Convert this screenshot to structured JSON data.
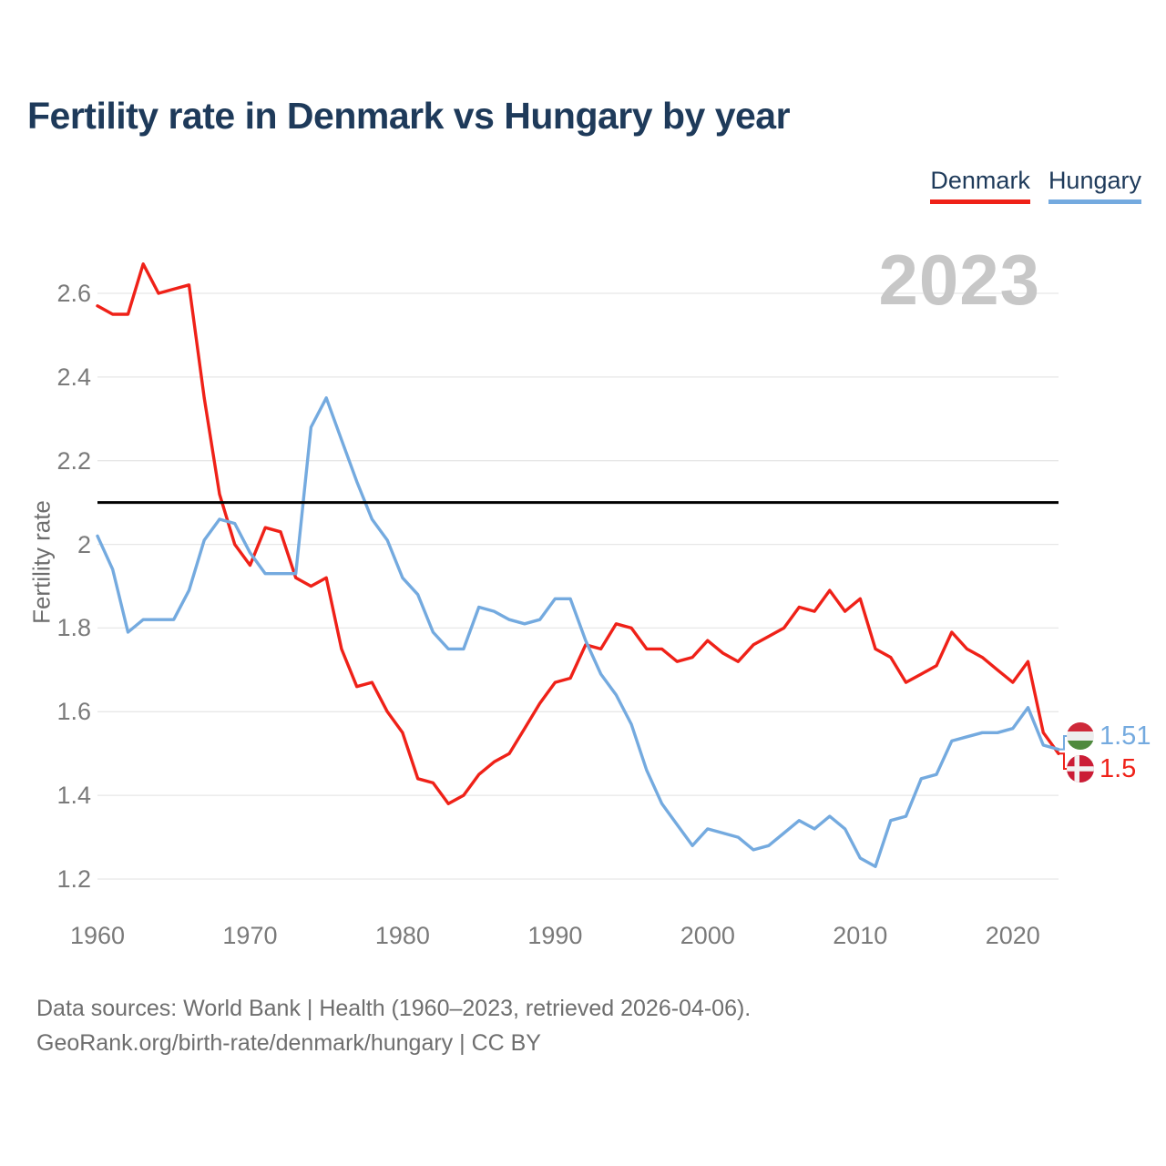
{
  "title": "Fertility rate in Denmark vs Hungary by year",
  "legend": {
    "denmark": "Denmark",
    "hungary": "Hungary"
  },
  "watermark": "2023",
  "y_axis": {
    "title": "Fertility rate",
    "ticks": [
      "2.6",
      "2.4",
      "2.2",
      "2",
      "1.8",
      "1.6",
      "1.4",
      "1.2"
    ]
  },
  "x_axis": {
    "ticks": [
      "1960",
      "1970",
      "1980",
      "1990",
      "2000",
      "2010",
      "2020"
    ]
  },
  "end_labels": {
    "hungary": {
      "value": "1.51",
      "icon": "hungary-flag-icon"
    },
    "denmark": {
      "value": "1.5",
      "icon": "denmark-flag-icon"
    }
  },
  "footer": {
    "line1": "Data sources: World Bank | Health (1960–2023, retrieved 2026-04-06).",
    "line2": "GeoRank.org/birth-rate/denmark/hungary | CC BY"
  },
  "colors": {
    "denmark_red": "#ef2118",
    "hungary_blue": "#74aadf",
    "reference_line_black": "#000000",
    "title_navy": "#1e3a5a",
    "watermark_gray": "#c7c7c7"
  },
  "chart_data": {
    "type": "line",
    "title": "Fertility rate in Denmark vs Hungary by year",
    "xlabel": "",
    "ylabel": "Fertility rate",
    "ylim": [
      1.15,
      2.72
    ],
    "grid": "horizontal",
    "legend_position": "top-right",
    "x": [
      1960,
      1961,
      1962,
      1963,
      1964,
      1965,
      1966,
      1967,
      1968,
      1969,
      1970,
      1971,
      1972,
      1973,
      1974,
      1975,
      1976,
      1977,
      1978,
      1979,
      1980,
      1981,
      1982,
      1983,
      1984,
      1985,
      1986,
      1987,
      1988,
      1989,
      1990,
      1991,
      1992,
      1993,
      1994,
      1995,
      1996,
      1997,
      1998,
      1999,
      2000,
      2001,
      2002,
      2003,
      2004,
      2005,
      2006,
      2007,
      2008,
      2009,
      2010,
      2011,
      2012,
      2013,
      2014,
      2015,
      2016,
      2017,
      2018,
      2019,
      2020,
      2021,
      2022,
      2023
    ],
    "series": [
      {
        "name": "Denmark",
        "color": "#ef2118",
        "values": [
          2.57,
          2.55,
          2.55,
          2.67,
          2.6,
          2.61,
          2.62,
          2.35,
          2.12,
          2.0,
          1.95,
          2.04,
          2.03,
          1.92,
          1.9,
          1.92,
          1.75,
          1.66,
          1.67,
          1.6,
          1.55,
          1.44,
          1.43,
          1.38,
          1.4,
          1.45,
          1.48,
          1.5,
          1.56,
          1.62,
          1.67,
          1.68,
          1.76,
          1.75,
          1.81,
          1.8,
          1.75,
          1.75,
          1.72,
          1.73,
          1.77,
          1.74,
          1.72,
          1.76,
          1.78,
          1.8,
          1.85,
          1.84,
          1.89,
          1.84,
          1.87,
          1.75,
          1.73,
          1.67,
          1.69,
          1.71,
          1.79,
          1.75,
          1.73,
          1.7,
          1.67,
          1.72,
          1.55,
          1.5
        ]
      },
      {
        "name": "Hungary",
        "color": "#74aadf",
        "values": [
          2.02,
          1.94,
          1.79,
          1.82,
          1.82,
          1.82,
          1.89,
          2.01,
          2.06,
          2.05,
          1.98,
          1.93,
          1.93,
          1.93,
          2.28,
          2.35,
          2.25,
          2.15,
          2.06,
          2.01,
          1.92,
          1.88,
          1.79,
          1.75,
          1.75,
          1.85,
          1.84,
          1.82,
          1.81,
          1.82,
          1.87,
          1.87,
          1.77,
          1.69,
          1.64,
          1.57,
          1.46,
          1.38,
          1.33,
          1.28,
          1.32,
          1.31,
          1.3,
          1.27,
          1.28,
          1.31,
          1.34,
          1.32,
          1.35,
          1.32,
          1.25,
          1.23,
          1.34,
          1.35,
          1.44,
          1.45,
          1.53,
          1.54,
          1.55,
          1.55,
          1.56,
          1.61,
          1.52,
          1.51
        ]
      }
    ],
    "annotations": {
      "replacement_level": 2.1,
      "watermark_year": "2023",
      "end_labels": {
        "Hungary": 1.51,
        "Denmark": 1.5
      }
    }
  }
}
